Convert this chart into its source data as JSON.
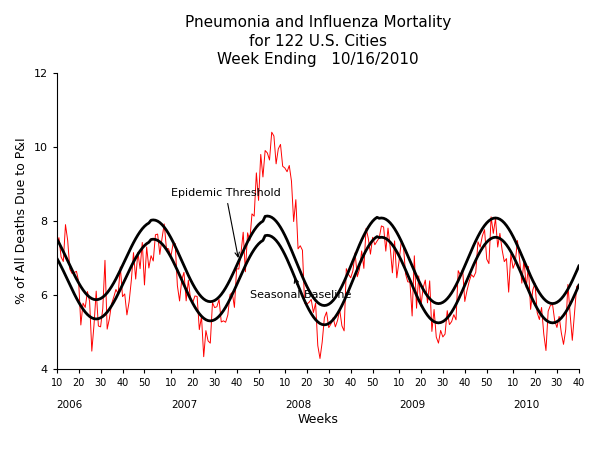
{
  "title_line1": "Pneumonia and Influenza Mortality",
  "title_line2": "for 122 U.S. Cities",
  "title_line3": "Week Ending   10/16/2010",
  "ylabel": "% of All Deaths Due to P&I",
  "xlabel": "Weeks",
  "ylim": [
    4,
    12
  ],
  "yticks": [
    4,
    6,
    8,
    10,
    12
  ],
  "year_labels": [
    "2006",
    "2007",
    "2008",
    "2009",
    "2010"
  ],
  "background_color": "#ffffff",
  "epidemic_threshold_color": "#000000",
  "seasonal_baseline_color": "#000000",
  "actual_data_color": "#ff0000",
  "epidemic_label": "Epidemic Threshold",
  "baseline_label": "Seasonal Baseline",
  "title_fontsize": 11,
  "axis_label_fontsize": 9,
  "annotation_fontsize": 8
}
